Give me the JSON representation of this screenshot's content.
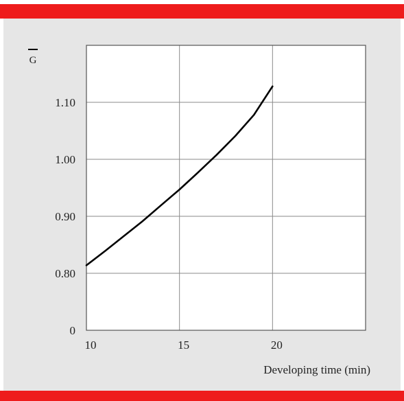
{
  "colors": {
    "band": "#ee1c1c",
    "background": "#e6e6e6",
    "plot_bg": "#ffffff",
    "grid": "#8a8a8a",
    "line": "#000000"
  },
  "chart_data": {
    "type": "line",
    "title": "",
    "ylabel": "G",
    "ylabel_overline": true,
    "xlabel": "Developing time (min)",
    "xlim": [
      10,
      25
    ],
    "ylim": [
      0.7,
      1.2
    ],
    "x_ticks": [
      10,
      15,
      20
    ],
    "x_tick_labels": [
      "10",
      "15",
      "20"
    ],
    "y_ticks": [
      0.7,
      0.8,
      0.9,
      1.0,
      1.1
    ],
    "y_tick_labels": [
      "0",
      "0.80",
      "0.90",
      "1.00",
      "1.10"
    ],
    "axis_break_note": "lowest y tick printed as 0",
    "grid": true,
    "series": [
      {
        "x": [
          10,
          11,
          12,
          13,
          14,
          15,
          16,
          17,
          18,
          19,
          20
        ],
        "y": [
          0.814,
          0.839,
          0.865,
          0.891,
          0.919,
          0.947,
          0.977,
          1.008,
          1.041,
          1.078,
          1.128
        ]
      }
    ]
  }
}
